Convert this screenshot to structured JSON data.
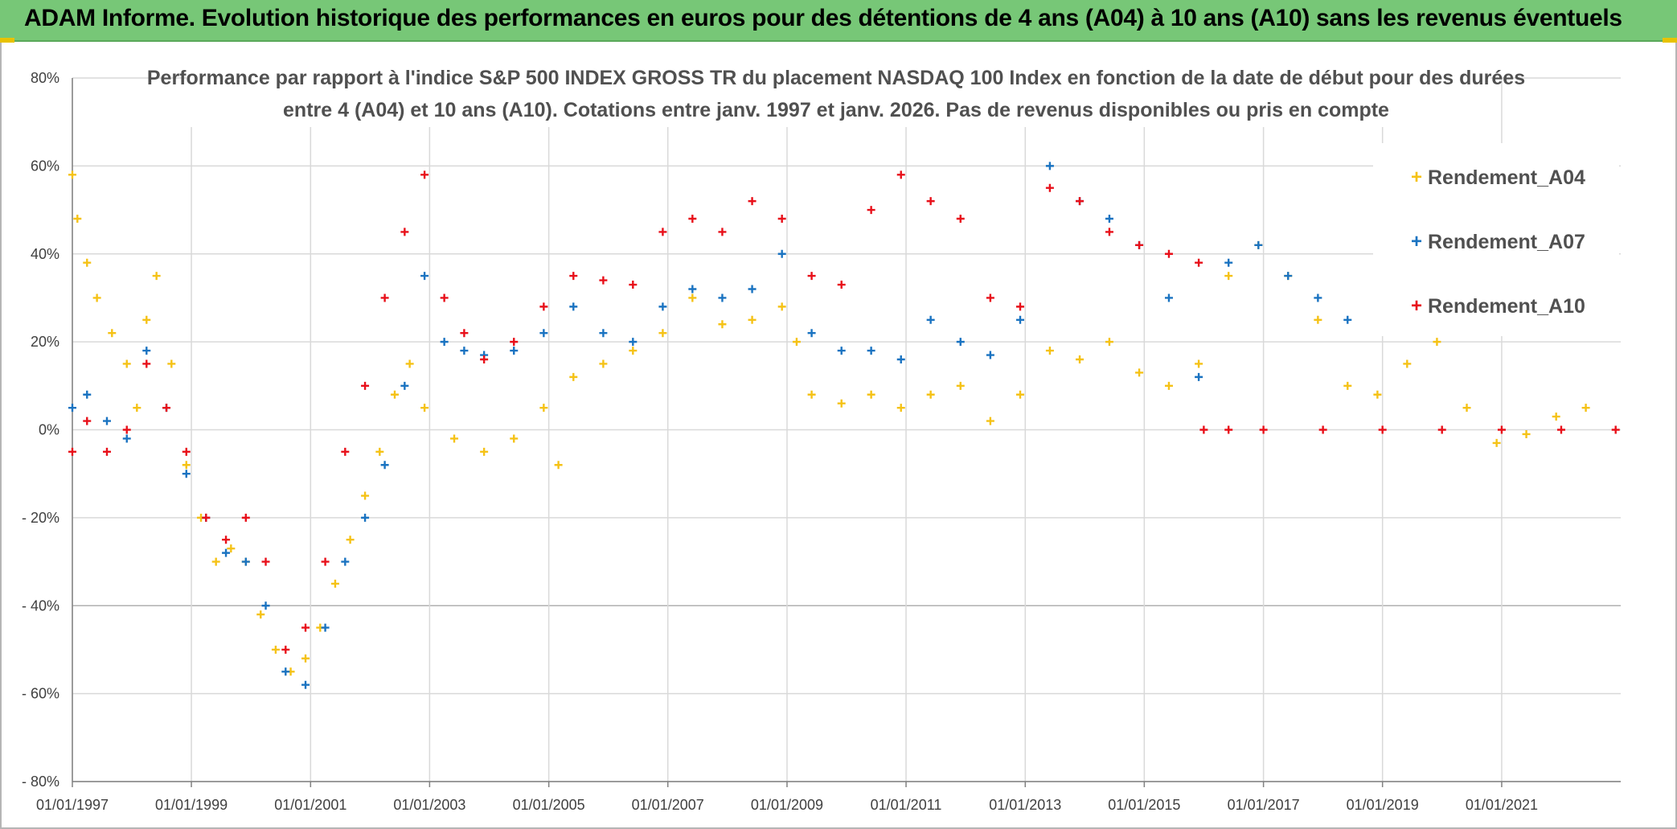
{
  "banner": {
    "title": "ADAM Informe. Evolution historique des performances en euros pour des détentions de 4 ans (A04) à 10 ans (A10) sans les revenus éventuels"
  },
  "colors": {
    "banner_bg": "#77c777",
    "rendement_a04": "#f5c216",
    "rendement_a07": "#1a73c1",
    "rendement_a10": "#e8101a",
    "grid": "#d9d9d9"
  },
  "chart_data": {
    "type": "scatter",
    "title_lines": [
      "Performance par rapport à l'indice S&P 500 INDEX GROSS TR  du placement NASDAQ 100 Index en fonction de la date de début pour des durées",
      "entre 4 (A04) et 10 ans (A10). Cotations entre janv. 1997 et janv. 2026. Pas de revenus disponibles ou pris en compte"
    ],
    "x_axis": {
      "scale": "date",
      "min": "1997-01-01",
      "max": "2023-01-01",
      "tick_labels": [
        "01/01/1997",
        "01/01/1999",
        "01/01/2001",
        "01/01/2003",
        "01/01/2005",
        "01/01/2007",
        "01/01/2009",
        "01/01/2011",
        "01/01/2013",
        "01/01/2015",
        "01/01/2017",
        "01/01/2019",
        "01/01/2021"
      ]
    },
    "y_axis": {
      "min": -80,
      "max": 80,
      "unit": "%",
      "ticks": [
        80,
        60,
        40,
        20,
        0,
        -20,
        -40,
        -60,
        -80
      ],
      "tick_labels": [
        "80%",
        "60%",
        "40%",
        "20%",
        "0%",
        "- 20%",
        "- 40%",
        "- 60%",
        "- 80%"
      ]
    },
    "grid": true,
    "legend_position": "right",
    "marker": "+",
    "series": [
      {
        "name": "Rendement_A04",
        "color": "#f5c216",
        "points": [
          [
            "1997-01-01",
            58
          ],
          [
            "1997-02-01",
            48
          ],
          [
            "1997-04-01",
            38
          ],
          [
            "1997-06-01",
            30
          ],
          [
            "1997-09-01",
            22
          ],
          [
            "1997-12-01",
            15
          ],
          [
            "1998-02-01",
            5
          ],
          [
            "1998-04-01",
            25
          ],
          [
            "1998-06-01",
            35
          ],
          [
            "1998-09-01",
            15
          ],
          [
            "1998-12-01",
            -8
          ],
          [
            "1999-03-01",
            -20
          ],
          [
            "1999-06-01",
            -30
          ],
          [
            "1999-09-01",
            -27
          ],
          [
            "1999-12-01",
            -30
          ],
          [
            "2000-03-01",
            -42
          ],
          [
            "2000-06-01",
            -50
          ],
          [
            "2000-09-01",
            -55
          ],
          [
            "2000-12-01",
            -52
          ],
          [
            "2001-03-01",
            -45
          ],
          [
            "2001-06-01",
            -35
          ],
          [
            "2001-09-01",
            -25
          ],
          [
            "2001-12-01",
            -15
          ],
          [
            "2002-03-01",
            -5
          ],
          [
            "2002-06-01",
            8
          ],
          [
            "2002-09-01",
            15
          ],
          [
            "2002-12-01",
            5
          ],
          [
            "2003-06-01",
            -2
          ],
          [
            "2003-12-01",
            -5
          ],
          [
            "2004-06-01",
            -2
          ],
          [
            "2004-12-01",
            5
          ],
          [
            "2005-03-01",
            -8
          ],
          [
            "2005-06-01",
            12
          ],
          [
            "2005-12-01",
            15
          ],
          [
            "2006-06-01",
            18
          ],
          [
            "2006-12-01",
            22
          ],
          [
            "2007-06-01",
            30
          ],
          [
            "2007-12-01",
            24
          ],
          [
            "2008-06-01",
            25
          ],
          [
            "2008-12-01",
            28
          ],
          [
            "2009-03-01",
            20
          ],
          [
            "2009-06-01",
            8
          ],
          [
            "2009-12-01",
            6
          ],
          [
            "2010-06-01",
            8
          ],
          [
            "2010-12-01",
            5
          ],
          [
            "2011-06-01",
            8
          ],
          [
            "2011-12-01",
            10
          ],
          [
            "2012-06-01",
            2
          ],
          [
            "2012-12-01",
            8
          ],
          [
            "2013-06-01",
            18
          ],
          [
            "2013-12-01",
            16
          ],
          [
            "2014-06-01",
            20
          ],
          [
            "2014-12-01",
            13
          ],
          [
            "2015-06-01",
            10
          ],
          [
            "2015-12-01",
            15
          ],
          [
            "2016-06-01",
            35
          ],
          [
            "2016-12-01",
            42
          ],
          [
            "2017-06-01",
            35
          ],
          [
            "2017-12-01",
            25
          ],
          [
            "2018-06-01",
            10
          ],
          [
            "2018-12-01",
            8
          ],
          [
            "2019-06-01",
            15
          ],
          [
            "2019-12-01",
            20
          ],
          [
            "2020-06-01",
            5
          ],
          [
            "2020-12-01",
            -3
          ],
          [
            "2021-06-01",
            -1
          ],
          [
            "2021-12-01",
            3
          ],
          [
            "2022-06-01",
            5
          ]
        ]
      },
      {
        "name": "Rendement_A07",
        "color": "#1a73c1",
        "points": [
          [
            "1997-01-01",
            5
          ],
          [
            "1997-04-01",
            8
          ],
          [
            "1997-08-01",
            2
          ],
          [
            "1997-12-01",
            -2
          ],
          [
            "1998-04-01",
            18
          ],
          [
            "1998-08-01",
            5
          ],
          [
            "1998-12-01",
            -10
          ],
          [
            "1999-04-01",
            -20
          ],
          [
            "1999-08-01",
            -28
          ],
          [
            "1999-12-01",
            -30
          ],
          [
            "2000-04-01",
            -40
          ],
          [
            "2000-08-01",
            -55
          ],
          [
            "2000-12-01",
            -58
          ],
          [
            "2001-04-01",
            -45
          ],
          [
            "2001-08-01",
            -30
          ],
          [
            "2001-12-01",
            -20
          ],
          [
            "2002-04-01",
            -8
          ],
          [
            "2002-08-01",
            10
          ],
          [
            "2002-12-01",
            35
          ],
          [
            "2003-04-01",
            20
          ],
          [
            "2003-08-01",
            18
          ],
          [
            "2003-12-01",
            17
          ],
          [
            "2004-06-01",
            18
          ],
          [
            "2004-12-01",
            22
          ],
          [
            "2005-06-01",
            28
          ],
          [
            "2005-12-01",
            22
          ],
          [
            "2006-06-01",
            20
          ],
          [
            "2006-12-01",
            28
          ],
          [
            "2007-06-01",
            32
          ],
          [
            "2007-12-01",
            30
          ],
          [
            "2008-06-01",
            32
          ],
          [
            "2008-12-01",
            40
          ],
          [
            "2009-06-01",
            22
          ],
          [
            "2009-12-01",
            18
          ],
          [
            "2010-06-01",
            18
          ],
          [
            "2010-12-01",
            16
          ],
          [
            "2011-06-01",
            25
          ],
          [
            "2011-12-01",
            20
          ],
          [
            "2012-06-01",
            17
          ],
          [
            "2012-12-01",
            25
          ],
          [
            "2013-06-01",
            60
          ],
          [
            "2013-12-01",
            52
          ],
          [
            "2014-06-01",
            48
          ],
          [
            "2014-12-01",
            42
          ],
          [
            "2015-06-01",
            30
          ],
          [
            "2015-12-01",
            12
          ],
          [
            "2016-06-01",
            38
          ],
          [
            "2016-12-01",
            42
          ],
          [
            "2017-06-01",
            35
          ],
          [
            "2017-12-01",
            30
          ],
          [
            "2018-06-01",
            25
          ]
        ]
      },
      {
        "name": "Rendement_A10",
        "color": "#e8101a",
        "points": [
          [
            "1997-01-01",
            -5
          ],
          [
            "1997-04-01",
            2
          ],
          [
            "1997-08-01",
            -5
          ],
          [
            "1997-12-01",
            0
          ],
          [
            "1998-04-01",
            15
          ],
          [
            "1998-08-01",
            5
          ],
          [
            "1998-12-01",
            -5
          ],
          [
            "1999-04-01",
            -20
          ],
          [
            "1999-08-01",
            -25
          ],
          [
            "1999-12-01",
            -20
          ],
          [
            "2000-04-01",
            -30
          ],
          [
            "2000-08-01",
            -50
          ],
          [
            "2000-12-01",
            -45
          ],
          [
            "2001-04-01",
            -30
          ],
          [
            "2001-08-01",
            -5
          ],
          [
            "2001-12-01",
            10
          ],
          [
            "2002-04-01",
            30
          ],
          [
            "2002-08-01",
            45
          ],
          [
            "2002-12-01",
            58
          ],
          [
            "2003-04-01",
            30
          ],
          [
            "2003-08-01",
            22
          ],
          [
            "2003-12-01",
            16
          ],
          [
            "2004-06-01",
            20
          ],
          [
            "2004-12-01",
            28
          ],
          [
            "2005-06-01",
            35
          ],
          [
            "2005-12-01",
            34
          ],
          [
            "2006-06-01",
            33
          ],
          [
            "2006-12-01",
            45
          ],
          [
            "2007-06-01",
            48
          ],
          [
            "2007-12-01",
            45
          ],
          [
            "2008-06-01",
            52
          ],
          [
            "2008-12-01",
            48
          ],
          [
            "2009-06-01",
            35
          ],
          [
            "2009-12-01",
            33
          ],
          [
            "2010-06-01",
            50
          ],
          [
            "2010-12-01",
            58
          ],
          [
            "2011-06-01",
            52
          ],
          [
            "2011-12-01",
            48
          ],
          [
            "2012-06-01",
            30
          ],
          [
            "2012-12-01",
            28
          ],
          [
            "2013-06-01",
            55
          ],
          [
            "2013-12-01",
            52
          ],
          [
            "2014-06-01",
            45
          ],
          [
            "2014-12-01",
            42
          ],
          [
            "2015-06-01",
            40
          ],
          [
            "2015-12-01",
            38
          ],
          [
            "2016-01-01",
            0
          ],
          [
            "2016-06-01",
            0
          ],
          [
            "2017-01-01",
            0
          ],
          [
            "2018-01-01",
            0
          ],
          [
            "2019-01-01",
            0
          ],
          [
            "2020-01-01",
            0
          ],
          [
            "2021-01-01",
            0
          ],
          [
            "2022-01-01",
            0
          ],
          [
            "2022-12-01",
            0
          ]
        ]
      }
    ]
  }
}
